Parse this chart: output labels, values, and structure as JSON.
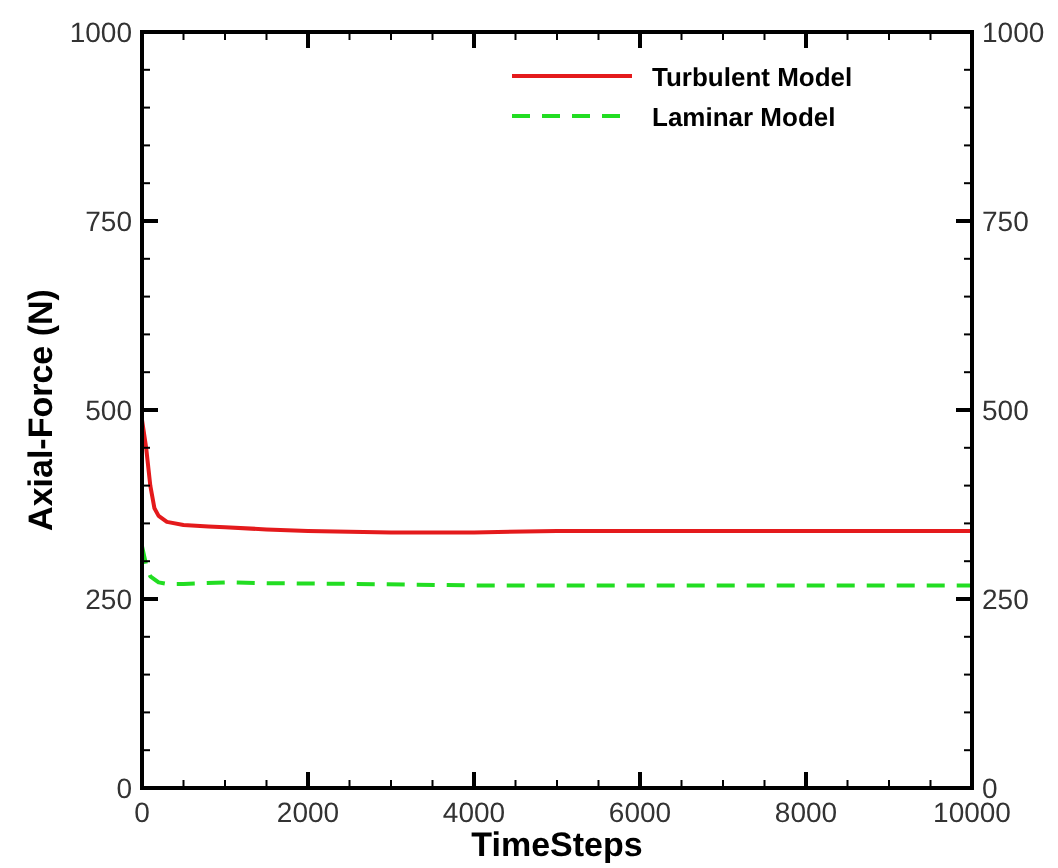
{
  "chart_data": {
    "type": "line",
    "xlabel": "TimeSteps",
    "ylabel": "Axial-Force (N)",
    "xlim": [
      0,
      10000
    ],
    "ylim": [
      0,
      1000
    ],
    "y2lim": [
      0,
      1000
    ],
    "xticks": [
      0,
      {
        "value": 500,
        "label": null
      },
      {
        "value": 1000,
        "label": null
      },
      {
        "value": 1500,
        "label": null
      },
      2000,
      {
        "value": 2500,
        "label": null
      },
      {
        "value": 3000,
        "label": null
      },
      {
        "value": 3500,
        "label": null
      },
      4000,
      {
        "value": 4500,
        "label": null
      },
      {
        "value": 5000,
        "label": null
      },
      {
        "value": 5500,
        "label": null
      },
      6000,
      {
        "value": 6500,
        "label": null
      },
      {
        "value": 7000,
        "label": null
      },
      {
        "value": 7500,
        "label": null
      },
      8000,
      {
        "value": 8500,
        "label": null
      },
      {
        "value": 9000,
        "label": null
      },
      {
        "value": 9500,
        "label": null
      },
      10000
    ],
    "yticks": [
      0,
      {
        "value": 50,
        "label": null
      },
      {
        "value": 100,
        "label": null
      },
      {
        "value": 150,
        "label": null
      },
      {
        "value": 200,
        "label": null
      },
      250,
      {
        "value": 300,
        "label": null
      },
      {
        "value": 350,
        "label": null
      },
      {
        "value": 400,
        "label": null
      },
      {
        "value": 450,
        "label": null
      },
      500,
      {
        "value": 550,
        "label": null
      },
      {
        "value": 600,
        "label": null
      },
      {
        "value": 650,
        "label": null
      },
      {
        "value": 700,
        "label": null
      },
      750,
      {
        "value": 800,
        "label": null
      },
      {
        "value": 850,
        "label": null
      },
      {
        "value": 900,
        "label": null
      },
      {
        "value": 950,
        "label": null
      },
      1000
    ],
    "y2ticks": [
      0,
      250,
      500,
      750,
      1000
    ],
    "grid": false,
    "legend": "top right",
    "series": [
      {
        "name": "Turbulent Model",
        "color": "#e41a1c",
        "line_style": "solid",
        "x": [
          0,
          50,
          100,
          150,
          200,
          300,
          500,
          800,
          1000,
          1500,
          2000,
          3000,
          4000,
          5000,
          6000,
          8000,
          10000
        ],
        "values": [
          487,
          450,
          400,
          370,
          360,
          352,
          348,
          346,
          345,
          342,
          340,
          338,
          338,
          340,
          340,
          340,
          340
        ]
      },
      {
        "name": "Laminar Model",
        "color": "#22dd22",
        "line_style": "dashed",
        "x": [
          0,
          50,
          100,
          200,
          300,
          500,
          1000,
          1500,
          2500,
          4000,
          6000,
          8000,
          10000
        ],
        "values": [
          320,
          295,
          280,
          272,
          270,
          270,
          272,
          271,
          270,
          268,
          268,
          268,
          268
        ]
      }
    ]
  }
}
